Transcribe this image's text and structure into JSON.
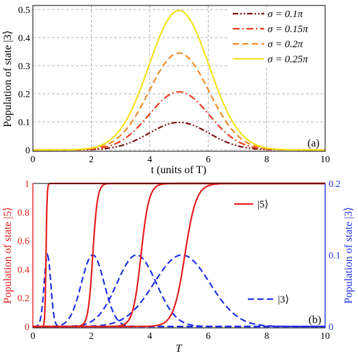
{
  "chart_data": [
    {
      "type": "line",
      "panel_label": "(a)",
      "xlabel": "t (units of T)",
      "ylabel": "Population of state |3⟩",
      "xlim": [
        0,
        10
      ],
      "ylim": [
        0,
        0.51
      ],
      "x_ticks": [
        "0",
        "2",
        "4",
        "6",
        "8",
        "10"
      ],
      "y_ticks": [
        "0",
        "0.1",
        "0.2",
        "0.3",
        "0.4",
        "0.5"
      ],
      "grid": true,
      "legend_position": "top-right",
      "series": [
        {
          "name": "σ = 0.1π",
          "color": "#7b0a0a",
          "style": "dash-dot-dot",
          "peak_x": 5,
          "peak_y": 0.098,
          "width": 1.45
        },
        {
          "name": "σ = 0.15π",
          "color": "#e8391c",
          "style": "dash-dot",
          "peak_x": 5,
          "peak_y": 0.207,
          "width": 1.45
        },
        {
          "name": "σ = 0.2π",
          "color": "#f08a2a",
          "style": "dashed",
          "peak_x": 5,
          "peak_y": 0.345,
          "width": 1.45
        },
        {
          "name": "σ = 0.25π",
          "color": "#f2e21c",
          "style": "solid",
          "peak_x": 5,
          "peak_y": 0.497,
          "width": 1.45
        }
      ]
    },
    {
      "type": "line",
      "panel_label": "(b)",
      "xlabel": "T",
      "ylabel_left": "Population of state |5⟩",
      "ylabel_right": "Population of state |3⟩",
      "xlim": [
        0,
        10
      ],
      "ylim_left": [
        0,
        1
      ],
      "ylim_right": [
        0,
        0.2
      ],
      "x_ticks": [
        "0",
        "2",
        "4",
        "6",
        "8",
        "10"
      ],
      "y_ticks_left": [
        "0",
        "0.2",
        "0.4",
        "0.6",
        "0.8",
        "1"
      ],
      "y_ticks_right": [
        "0",
        "0.1",
        "0.2"
      ],
      "left_color": "#e51c1c",
      "right_color": "#1f2ee6",
      "legend": [
        {
          "name": "|5⟩",
          "color": "#e51c1c",
          "style": "solid"
        },
        {
          "name": "|3⟩",
          "color": "#1f2ee6",
          "style": "dashed"
        }
      ],
      "series": [
        {
          "name": "|5⟩",
          "axis": "left",
          "color": "#e51c1c",
          "style": "solid",
          "midpoint_x": [
            0.45,
            2.05,
            3.7,
            5.2
          ],
          "rise_width": [
            0.07,
            0.32,
            0.55,
            0.78
          ]
        },
        {
          "name": "|3⟩",
          "axis": "right",
          "color": "#1f2ee6",
          "style": "dashed",
          "peak_x": [
            0.5,
            2.05,
            3.55,
            5.1
          ],
          "peak_y": [
            0.1,
            0.1,
            0.1,
            0.1
          ],
          "width": [
            0.16,
            0.55,
            0.95,
            1.35
          ]
        }
      ]
    }
  ]
}
